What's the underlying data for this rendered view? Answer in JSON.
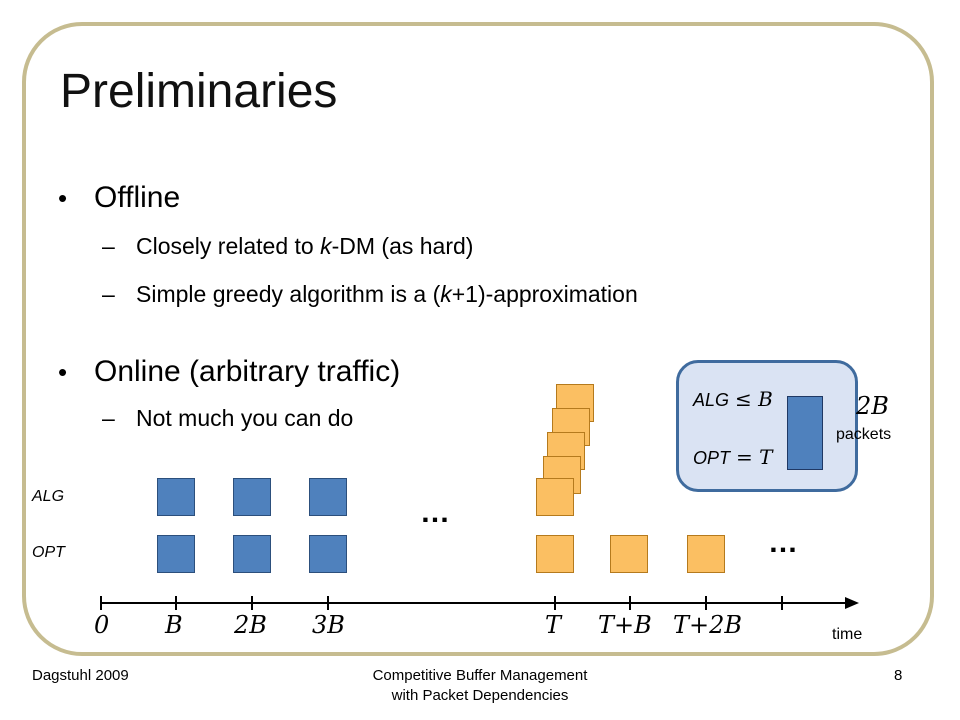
{
  "slide": {
    "title": "Preliminaries",
    "bullets": [
      {
        "text": "Offline",
        "subs": [
          {
            "parts": [
              "Closely related to ",
              "k",
              "-DM (as hard)"
            ]
          },
          {
            "parts": [
              "Simple greedy algorithm is a (",
              "k",
              "+1)-approximation"
            ]
          }
        ]
      },
      {
        "text": "Online (arbitrary traffic)",
        "subs": [
          {
            "parts": [
              "Not much you can do"
            ]
          }
        ]
      }
    ]
  },
  "diagram": {
    "row_labels": {
      "alg": "ALG",
      "opt": "OPT"
    },
    "ellipsis": "…",
    "axis": {
      "label": "time",
      "ticks": [
        "0",
        "B",
        "2B",
        "3B",
        "T",
        "T+B",
        "T+2B"
      ]
    },
    "callout": {
      "alg_text": "ALG",
      "alg_math": "≤ B",
      "opt_text": "OPT",
      "opt_math": "= T",
      "packets_math": "2B",
      "packets_label": "packets"
    }
  },
  "footer": {
    "left": "Dagstuhl 2009",
    "center_line1": "Competitive Buffer Management",
    "center_line2": "with Packet Dependencies",
    "page": "8"
  },
  "colors": {
    "border": "#c6bc90",
    "blue": "#4f81bd",
    "orange": "#fbbf62",
    "callout_fill": "#dae3f3"
  }
}
